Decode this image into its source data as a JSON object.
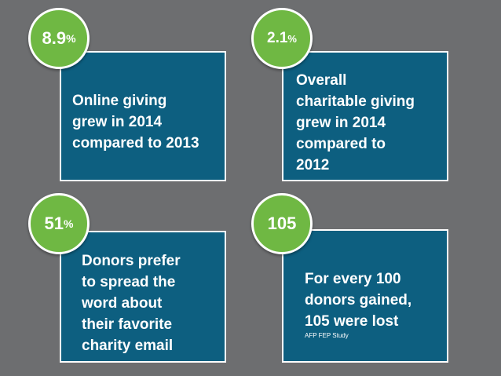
{
  "stats": [
    {
      "number": "8.9",
      "unit": "%",
      "text": [
        "Online giving",
        "grew in 2014",
        "compared to 2013"
      ]
    },
    {
      "number": "2.1",
      "unit": "%",
      "text": [
        "Overall",
        "charitable giving",
        "grew in 2014",
        "compared to",
        "2012"
      ]
    },
    {
      "number": "51",
      "unit": "%",
      "text": [
        "Donors prefer",
        "to spread the",
        "word about",
        "their favorite",
        "charity email"
      ]
    },
    {
      "number": "105",
      "unit": "",
      "text": [
        "For every 100",
        "donors gained,",
        "105 were lost"
      ],
      "source": "AFP FEP Study"
    }
  ],
  "colors": {
    "background": "#6d6e70",
    "card": "#0d5f80",
    "badge": "#6fb843",
    "border": "#ffffff"
  }
}
